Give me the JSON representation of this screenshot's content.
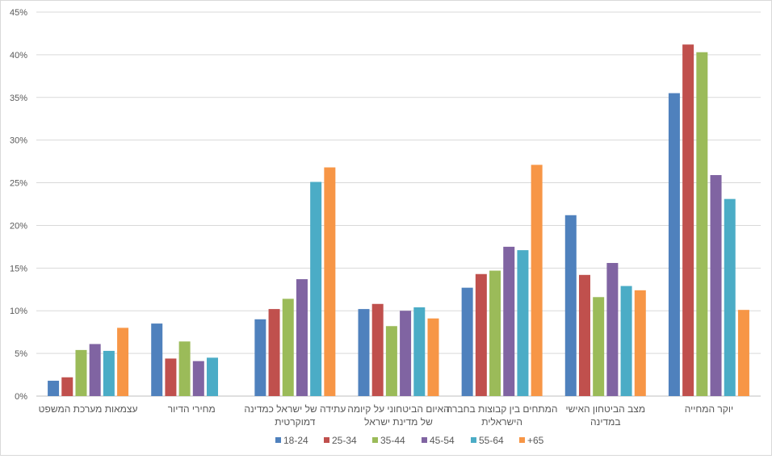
{
  "chart_data": {
    "type": "bar",
    "title": "",
    "xlabel": "",
    "ylabel": "",
    "ylim": [
      0,
      45
    ],
    "y_ticks": [
      "0%",
      "5%",
      "10%",
      "15%",
      "20%",
      "25%",
      "30%",
      "35%",
      "40%",
      "45%"
    ],
    "grid": true,
    "legend_position": "bottom",
    "categories": [
      [
        "עצמאות מערכת המשפט"
      ],
      [
        "מחירי הדיור"
      ],
      [
        "עתידה של ישראל כמדינה",
        "דמוקרטית"
      ],
      [
        "האיום הביטחוני על קיומה",
        "של מדינת ישראל"
      ],
      [
        "המתחים בין קבוצות בחברה",
        "הישראלית"
      ],
      [
        "מצב הביטחון האישי",
        "במדינה"
      ],
      [
        "יוקר המחייה"
      ]
    ],
    "series": [
      {
        "name": "18-24",
        "color": "#4F81BD",
        "values": [
          1.8,
          8.5,
          9.0,
          10.2,
          12.7,
          21.2,
          35.5
        ]
      },
      {
        "name": "25-34",
        "color": "#C0504D",
        "values": [
          2.2,
          4.4,
          10.2,
          10.8,
          14.3,
          14.2,
          41.2
        ]
      },
      {
        "name": "35-44",
        "color": "#9BBB59",
        "values": [
          5.4,
          6.4,
          11.4,
          8.2,
          14.7,
          11.6,
          40.3
        ]
      },
      {
        "name": "45-54",
        "color": "#8064A2",
        "values": [
          6.1,
          4.1,
          13.7,
          10.0,
          17.5,
          15.6,
          25.9
        ]
      },
      {
        "name": "55-64",
        "color": "#4BACC6",
        "values": [
          5.3,
          4.5,
          25.1,
          10.4,
          17.1,
          12.9,
          23.1
        ]
      },
      {
        "name": "+65",
        "color": "#F79646",
        "values": [
          8.0,
          null,
          26.8,
          9.1,
          27.1,
          12.4,
          10.1
        ]
      }
    ]
  }
}
